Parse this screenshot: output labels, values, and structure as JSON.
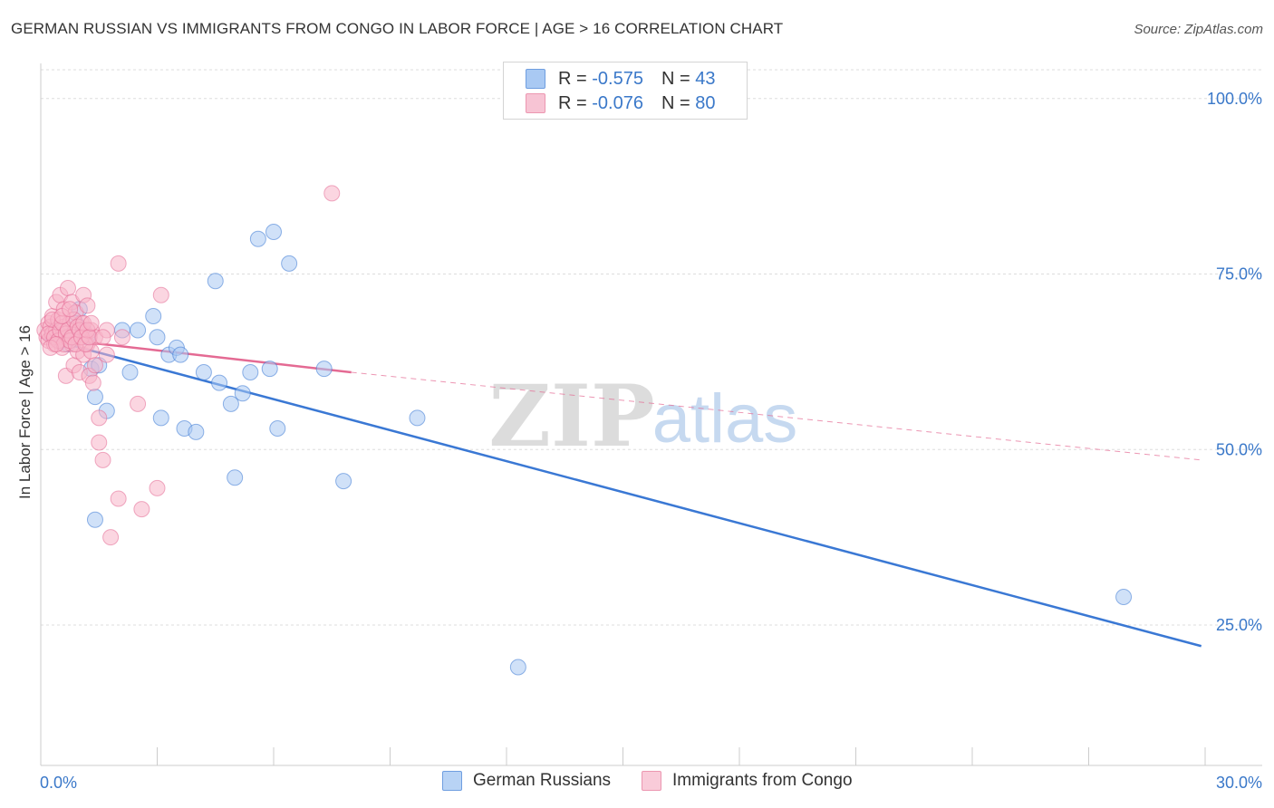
{
  "title": "GERMAN RUSSIAN VS IMMIGRANTS FROM CONGO IN LABOR FORCE | AGE > 16 CORRELATION CHART",
  "source": "Source: ZipAtlas.com",
  "watermark": {
    "zip": "ZIP",
    "atlas": "atlas"
  },
  "legend": {
    "r_label": "R =",
    "n_label": "N =",
    "rows": [
      {
        "r": "-0.575",
        "n": "43",
        "color": "#a9c9f3"
      },
      {
        "r": "-0.076",
        "n": "80",
        "color": "#f7b4c8"
      }
    ]
  },
  "chart_data": {
    "type": "scatter",
    "title": "GERMAN RUSSIAN VS IMMIGRANTS FROM CONGO IN LABOR FORCE | AGE > 16 CORRELATION CHART",
    "xlabel": "",
    "ylabel": "In Labor Force | Age > 16",
    "xlim": [
      0,
      30
    ],
    "ylim": [
      5,
      105
    ],
    "x_tick_labels": [
      "0.0%",
      "30.0%"
    ],
    "y_tick_labels": [
      "25.0%",
      "50.0%",
      "75.0%",
      "100.0%"
    ],
    "y_ticks": [
      25,
      50,
      75,
      100
    ],
    "grid": true,
    "legend_position": "bottom-center",
    "series": [
      {
        "name": "German Russians",
        "color": "#3a78d4",
        "fill": "#a9c9f3",
        "points": [
          [
            0.3,
            66.5
          ],
          [
            0.5,
            65.5
          ],
          [
            0.8,
            66
          ],
          [
            1.0,
            70
          ],
          [
            1.1,
            67
          ],
          [
            1.3,
            61.5
          ],
          [
            1.4,
            57.5
          ],
          [
            1.5,
            62
          ],
          [
            1.7,
            55.5
          ],
          [
            2.1,
            67
          ],
          [
            2.3,
            61
          ],
          [
            2.5,
            67
          ],
          [
            2.9,
            69
          ],
          [
            3.0,
            66
          ],
          [
            3.1,
            54.5
          ],
          [
            3.3,
            63.5
          ],
          [
            3.5,
            64.5
          ],
          [
            3.6,
            63.5
          ],
          [
            3.7,
            53
          ],
          [
            4.0,
            52.5
          ],
          [
            4.2,
            61
          ],
          [
            4.5,
            74
          ],
          [
            4.6,
            59.5
          ],
          [
            4.9,
            56.5
          ],
          [
            5.0,
            46
          ],
          [
            5.2,
            58
          ],
          [
            5.4,
            61
          ],
          [
            5.6,
            80
          ],
          [
            5.9,
            61.5
          ],
          [
            6.0,
            81
          ],
          [
            6.1,
            53
          ],
          [
            6.4,
            76.5
          ],
          [
            7.3,
            61.5
          ],
          [
            7.8,
            45.5
          ],
          [
            9.7,
            54.5
          ],
          [
            1.4,
            40
          ],
          [
            12.3,
            19
          ],
          [
            27.9,
            29
          ],
          [
            0.4,
            67
          ],
          [
            0.6,
            66
          ],
          [
            0.9,
            68
          ],
          [
            1.2,
            66
          ],
          [
            0.7,
            65
          ]
        ]
      },
      {
        "name": "Immigrants from Congo",
        "color": "#e46a93",
        "fill": "#f7b4c8",
        "points": [
          [
            0.1,
            67
          ],
          [
            0.15,
            66
          ],
          [
            0.2,
            65.5
          ],
          [
            0.2,
            68
          ],
          [
            0.25,
            67.5
          ],
          [
            0.3,
            66.5
          ],
          [
            0.3,
            69
          ],
          [
            0.35,
            65
          ],
          [
            0.4,
            67
          ],
          [
            0.4,
            71
          ],
          [
            0.45,
            68.5
          ],
          [
            0.5,
            66
          ],
          [
            0.5,
            72
          ],
          [
            0.55,
            64.5
          ],
          [
            0.6,
            67.5
          ],
          [
            0.6,
            70
          ],
          [
            0.65,
            60.5
          ],
          [
            0.7,
            66
          ],
          [
            0.7,
            73
          ],
          [
            0.75,
            68
          ],
          [
            0.8,
            65
          ],
          [
            0.8,
            71
          ],
          [
            0.85,
            62
          ],
          [
            0.9,
            67
          ],
          [
            0.9,
            69.5
          ],
          [
            0.95,
            64
          ],
          [
            1.0,
            66
          ],
          [
            1.0,
            61
          ],
          [
            1.05,
            68
          ],
          [
            1.1,
            72
          ],
          [
            1.1,
            63.5
          ],
          [
            1.15,
            66.5
          ],
          [
            1.2,
            65
          ],
          [
            1.2,
            70.5
          ],
          [
            1.25,
            60.5
          ],
          [
            1.3,
            67
          ],
          [
            1.3,
            64
          ],
          [
            1.35,
            59.5
          ],
          [
            1.4,
            66
          ],
          [
            1.4,
            62
          ],
          [
            1.5,
            54.5
          ],
          [
            1.5,
            51
          ],
          [
            1.6,
            48.5
          ],
          [
            1.7,
            67
          ],
          [
            1.7,
            63.5
          ],
          [
            1.8,
            37.5
          ],
          [
            2.0,
            76.5
          ],
          [
            2.0,
            43
          ],
          [
            2.1,
            66
          ],
          [
            2.5,
            56.5
          ],
          [
            2.6,
            41.5
          ],
          [
            3.0,
            44.5
          ],
          [
            3.1,
            72
          ],
          [
            7.5,
            86.5
          ],
          [
            0.2,
            66.5
          ],
          [
            0.3,
            68.5
          ],
          [
            0.35,
            66
          ],
          [
            0.45,
            65.5
          ],
          [
            0.5,
            67
          ],
          [
            0.55,
            68
          ],
          [
            0.6,
            65
          ],
          [
            0.65,
            66.5
          ],
          [
            0.7,
            67
          ],
          [
            0.75,
            65.5
          ],
          [
            0.8,
            66
          ],
          [
            0.85,
            68.5
          ],
          [
            0.9,
            65
          ],
          [
            0.95,
            67.5
          ],
          [
            1.0,
            67
          ],
          [
            1.05,
            66
          ],
          [
            1.1,
            68
          ],
          [
            1.15,
            65
          ],
          [
            1.2,
            67
          ],
          [
            1.25,
            66
          ],
          [
            1.3,
            68
          ],
          [
            0.25,
            64.5
          ],
          [
            0.4,
            65
          ],
          [
            0.55,
            69
          ],
          [
            0.75,
            70
          ],
          [
            1.6,
            66
          ]
        ]
      }
    ],
    "trend_lines": [
      {
        "series": "German Russians",
        "x": [
          0,
          29.9
        ],
        "y": [
          66,
          22
        ],
        "dashed_x": []
      },
      {
        "series": "Immigrants from Congo",
        "x": [
          0,
          8
        ],
        "y": [
          66,
          61
        ],
        "dashed_x": [
          8,
          29.9
        ],
        "dashed_y": [
          61,
          48.5
        ]
      }
    ]
  }
}
